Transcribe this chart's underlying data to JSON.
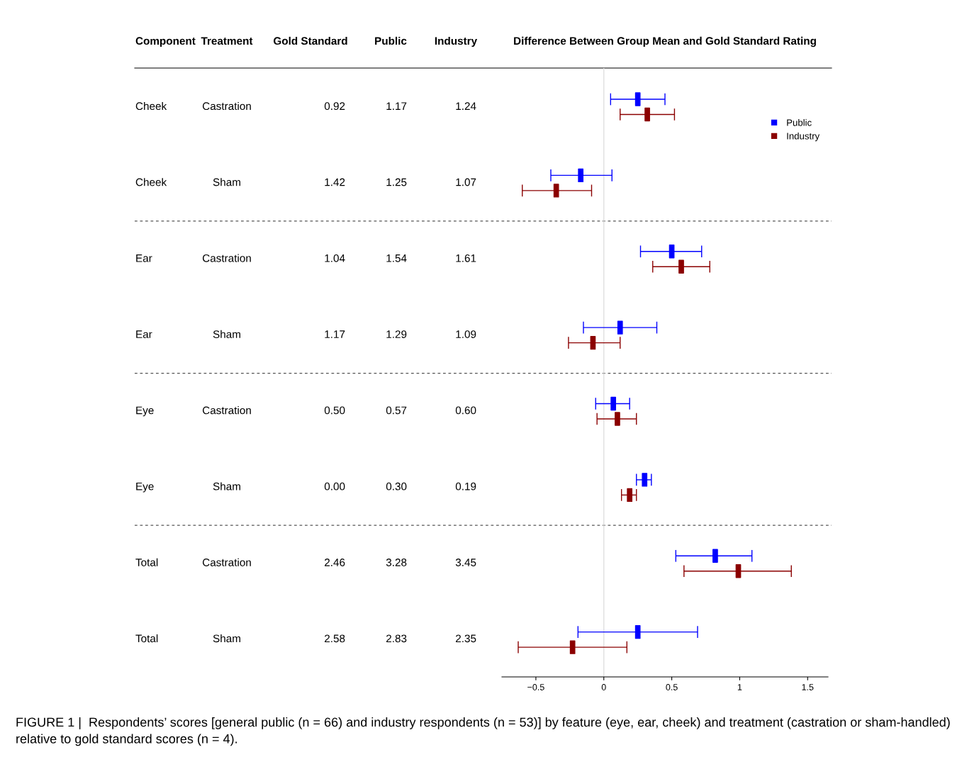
{
  "chart_data": [
    {
      "type": "other",
      "annotations": [
        "Component",
        "Treatment",
        "Gold Standard",
        "Public",
        "Industry",
        "Cheek",
        "Castration",
        "0.92",
        "1.17",
        "1.24",
        "Cheek",
        "Sham",
        "1.42",
        "1.25",
        "1.07",
        "Ear",
        "Castration",
        "1.04",
        "1.54",
        "1.61",
        "Ear",
        "Sham",
        "1.17",
        "1.29",
        "1.09",
        "Eye",
        "Castration",
        "0.50",
        "0.57",
        "0.60",
        "Eye",
        "Sham",
        "0.00",
        "0.30",
        "0.19",
        "Total",
        "Castration",
        "2.46",
        "3.28",
        "3.45",
        "Total",
        "Sham",
        "2.58",
        "2.83",
        "2.35"
      ]
    },
    {
      "type": "scatter",
      "orientation": "horizontal",
      "title": "Difference Between Group Mean and Gold Standard Rating",
      "categories": [
        null,
        null,
        null,
        null,
        null,
        null,
        null,
        null
      ],
      "series": [
        {
          "name": "Public",
          "color": "#0000ff",
          "values": [
            0.25,
            -0.17,
            0.5,
            0.12,
            0.07,
            0.3,
            0.82,
            0.25
          ],
          "errors": [
            [
              0.05,
              0.45
            ],
            [
              -0.39,
              0.06
            ],
            [
              0.27,
              0.72
            ],
            [
              -0.15,
              0.39
            ],
            [
              -0.06,
              0.19
            ],
            [
              0.24,
              0.35
            ],
            [
              0.53,
              1.09
            ],
            [
              -0.19,
              0.69
            ]
          ]
        },
        {
          "name": "Industry",
          "color": "#8b0000",
          "values": [
            0.32,
            -0.35,
            0.57,
            -0.08,
            0.1,
            0.19,
            0.99,
            -0.23
          ],
          "errors": [
            [
              0.12,
              0.52
            ],
            [
              -0.6,
              -0.09
            ],
            [
              0.36,
              0.78
            ],
            [
              -0.26,
              0.12
            ],
            [
              -0.05,
              0.24
            ],
            [
              0.13,
              0.24
            ],
            [
              0.59,
              1.38
            ],
            [
              -0.63,
              0.17
            ]
          ]
        }
      ],
      "xlim": [
        -0.75,
        1.65
      ],
      "xticks": [
        {
          "value": -0.5,
          "label": "−0.5"
        },
        0,
        0.5,
        1,
        1.5
      ],
      "ref_lines": [
        {
          "axis": "x",
          "value": 0,
          "color": "#e0e0e0"
        }
      ],
      "marker": "square",
      "legend": "top right",
      "grid": false,
      "tick_labels": "x",
      "annotations": [
        "FIGURE 1 |  Respondents’ scores [general public (n = 66) and industry respondents (n = 53)] by feature (eye, ear, cheek) and treatment (castration or sham-handled) relative to gold standard scores (n = 4)."
      ]
    }
  ]
}
